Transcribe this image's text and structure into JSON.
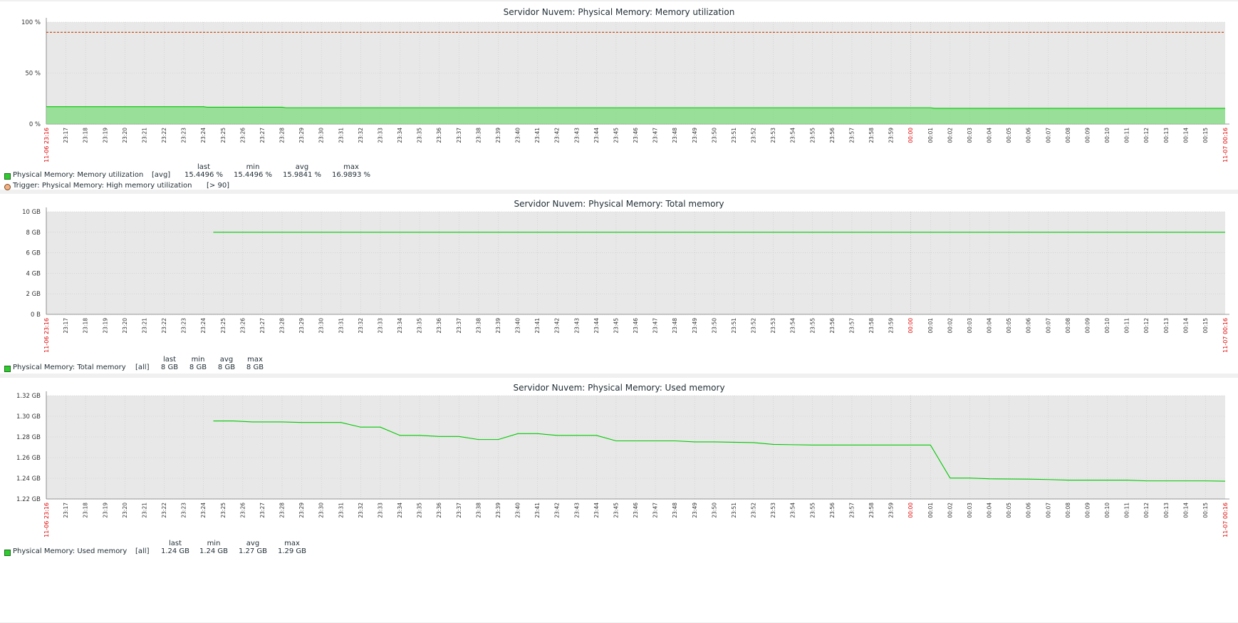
{
  "colors": {
    "series": "#00c800",
    "fill": "#7fdc7f",
    "trigger": "#c04000",
    "plot_bg": "#e8e8e8",
    "grid": "#c8c8c8",
    "red_label": "#e00000"
  },
  "time_ticks": [
    "23:17",
    "23:18",
    "23:19",
    "23:20",
    "23:21",
    "23:22",
    "23:23",
    "23:24",
    "23:25",
    "23:26",
    "23:27",
    "23:28",
    "23:29",
    "23:30",
    "23:31",
    "23:32",
    "23:33",
    "23:34",
    "23:35",
    "23:36",
    "23:37",
    "23:38",
    "23:39",
    "23:40",
    "23:41",
    "23:42",
    "23:43",
    "23:44",
    "23:45",
    "23:46",
    "23:47",
    "23:48",
    "23:49",
    "23:50",
    "23:51",
    "23:52",
    "23:53",
    "23:54",
    "23:55",
    "23:56",
    "23:57",
    "23:58",
    "23:59",
    "00:00",
    "00:01",
    "00:02",
    "00:03",
    "00:04",
    "00:05",
    "00:06",
    "00:07",
    "00:08",
    "00:09",
    "00:10",
    "00:11",
    "00:12",
    "00:13",
    "00:14",
    "00:15"
  ],
  "time_start_label": "11-06 23:16",
  "time_end_label": "11-07 00:16",
  "legend_headers": [
    "last",
    "min",
    "avg",
    "max"
  ],
  "chart_data": [
    {
      "type": "area",
      "title": "Servidor Nuvem: Physical Memory: Memory utilization",
      "y_ticks": [
        "0 %",
        "50 %",
        "100 %"
      ],
      "ylim": [
        0,
        100
      ],
      "x_range": [
        "23:16",
        "00:16"
      ],
      "series": [
        {
          "name": "Physical Memory: Memory utilization",
          "func": "[avg]",
          "stats": {
            "last": "15.4496 %",
            "min": "15.4496 %",
            "avg": "15.9841 %",
            "max": "16.9893 %"
          },
          "points": [
            [
              0,
              16.99
            ],
            [
              8,
              16.99
            ],
            [
              8.2,
              16.5
            ],
            [
              12,
              16.5
            ],
            [
              12.2,
              16.0
            ],
            [
              45,
              16.0
            ],
            [
              45.2,
              15.45
            ],
            [
              60,
              15.45
            ]
          ]
        }
      ],
      "trigger": {
        "name": "Trigger: Physical Memory: High memory utilization",
        "condition": "[> 90]",
        "value": 90
      }
    },
    {
      "type": "line",
      "title": "Servidor Nuvem: Physical Memory: Total memory",
      "y_ticks": [
        "0 B",
        "2 GB",
        "4 GB",
        "6 GB",
        "8 GB",
        "10 GB"
      ],
      "ylim": [
        0,
        10
      ],
      "x_range": [
        "23:16",
        "00:16"
      ],
      "series": [
        {
          "name": "Physical Memory: Total memory",
          "func": "[all]",
          "stats": {
            "last": "8 GB",
            "min": "8 GB",
            "avg": "8 GB",
            "max": "8 GB"
          },
          "points": [
            [
              8.5,
              8
            ],
            [
              60,
              8
            ]
          ]
        }
      ]
    },
    {
      "type": "line",
      "title": "Servidor Nuvem: Physical Memory: Used memory",
      "y_ticks": [
        "1.22 GB",
        "1.24 GB",
        "1.26 GB",
        "1.28 GB",
        "1.30 GB",
        "1.32 GB"
      ],
      "ylim": [
        1.22,
        1.32
      ],
      "x_range": [
        "23:16",
        "00:16"
      ],
      "series": [
        {
          "name": "Physical Memory: Used memory",
          "func": "[all]",
          "stats": {
            "last": "1.24 GB",
            "min": "1.24 GB",
            "avg": "1.27 GB",
            "max": "1.29 GB"
          },
          "points": [
            [
              8.5,
              1.2955
            ],
            [
              9.5,
              1.2955
            ],
            [
              10.5,
              1.2945
            ],
            [
              12,
              1.2945
            ],
            [
              13,
              1.294
            ],
            [
              14.5,
              1.294
            ],
            [
              15,
              1.294
            ],
            [
              16,
              1.2895
            ],
            [
              17,
              1.2895
            ],
            [
              18,
              1.2815
            ],
            [
              19,
              1.2815
            ],
            [
              20,
              1.2805
            ],
            [
              21,
              1.2805
            ],
            [
              22,
              1.2775
            ],
            [
              23,
              1.2775
            ],
            [
              24,
              1.2832
            ],
            [
              25,
              1.2832
            ],
            [
              26,
              1.2815
            ],
            [
              27,
              1.2815
            ],
            [
              28,
              1.2815
            ],
            [
              29,
              1.2762
            ],
            [
              30,
              1.2762
            ],
            [
              32,
              1.2762
            ],
            [
              33,
              1.2752
            ],
            [
              34,
              1.2752
            ],
            [
              36,
              1.2745
            ],
            [
              37,
              1.2728
            ],
            [
              38,
              1.2725
            ],
            [
              39,
              1.2722
            ],
            [
              44,
              1.2722
            ],
            [
              45,
              1.2722
            ],
            [
              46,
              1.2402
            ],
            [
              47,
              1.2402
            ],
            [
              48,
              1.2395
            ],
            [
              50,
              1.2392
            ],
            [
              51,
              1.2388
            ],
            [
              52,
              1.2382
            ],
            [
              55,
              1.2382
            ],
            [
              56,
              1.2375
            ],
            [
              59,
              1.2375
            ],
            [
              60,
              1.2372
            ]
          ]
        }
      ]
    }
  ]
}
